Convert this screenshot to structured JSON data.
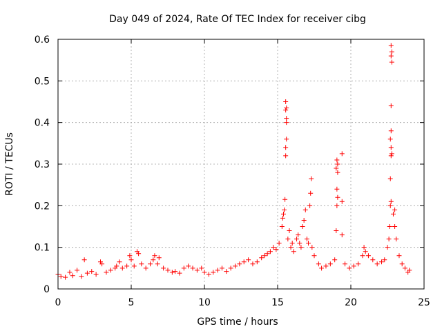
{
  "chart_data": {
    "type": "scatter",
    "title": "Day 049 of 2024, Rate Of TEC Index for receiver cibg",
    "xlabel": "GPS time / hours",
    "ylabel": "ROTI / TECUs",
    "xlim": [
      0,
      25
    ],
    "ylim": [
      0,
      0.6
    ],
    "xticks": [
      0,
      5,
      10,
      15,
      20,
      25
    ],
    "xtick_labels": [
      "0",
      "5",
      "10",
      "15",
      "20",
      "25"
    ],
    "yticks": [
      0,
      0.1,
      0.2,
      0.3,
      0.4,
      0.5,
      0.6
    ],
    "ytick_labels": [
      "0",
      "0.1",
      "0.2",
      "0.3",
      "0.4",
      "0.5",
      "0.6"
    ],
    "grid": true,
    "marker": "+",
    "marker_color": "#ff0000",
    "series": [
      {
        "name": "ROTI",
        "points": [
          [
            0.0,
            0.035
          ],
          [
            0.2,
            0.03
          ],
          [
            0.5,
            0.028
          ],
          [
            0.8,
            0.04
          ],
          [
            1.0,
            0.032
          ],
          [
            1.3,
            0.045
          ],
          [
            1.6,
            0.03
          ],
          [
            1.8,
            0.07
          ],
          [
            2.0,
            0.038
          ],
          [
            2.3,
            0.042
          ],
          [
            2.6,
            0.035
          ],
          [
            2.9,
            0.065
          ],
          [
            3.0,
            0.06
          ],
          [
            3.3,
            0.04
          ],
          [
            3.6,
            0.045
          ],
          [
            3.9,
            0.05
          ],
          [
            4.0,
            0.055
          ],
          [
            4.2,
            0.065
          ],
          [
            4.4,
            0.05
          ],
          [
            4.7,
            0.055
          ],
          [
            4.9,
            0.08
          ],
          [
            5.0,
            0.07
          ],
          [
            5.2,
            0.055
          ],
          [
            5.4,
            0.09
          ],
          [
            5.5,
            0.085
          ],
          [
            5.7,
            0.06
          ],
          [
            6.0,
            0.05
          ],
          [
            6.3,
            0.06
          ],
          [
            6.5,
            0.07
          ],
          [
            6.6,
            0.08
          ],
          [
            6.8,
            0.06
          ],
          [
            6.9,
            0.075
          ],
          [
            7.2,
            0.05
          ],
          [
            7.5,
            0.045
          ],
          [
            7.8,
            0.04
          ],
          [
            8.0,
            0.042
          ],
          [
            8.3,
            0.038
          ],
          [
            8.6,
            0.05
          ],
          [
            8.9,
            0.055
          ],
          [
            9.2,
            0.05
          ],
          [
            9.5,
            0.045
          ],
          [
            9.8,
            0.05
          ],
          [
            10.0,
            0.04
          ],
          [
            10.3,
            0.035
          ],
          [
            10.6,
            0.04
          ],
          [
            10.9,
            0.045
          ],
          [
            11.2,
            0.05
          ],
          [
            11.5,
            0.042
          ],
          [
            11.8,
            0.05
          ],
          [
            12.1,
            0.055
          ],
          [
            12.4,
            0.06
          ],
          [
            12.7,
            0.065
          ],
          [
            13.0,
            0.07
          ],
          [
            13.3,
            0.06
          ],
          [
            13.6,
            0.065
          ],
          [
            13.9,
            0.075
          ],
          [
            14.1,
            0.08
          ],
          [
            14.3,
            0.085
          ],
          [
            14.5,
            0.09
          ],
          [
            14.7,
            0.1
          ],
          [
            14.9,
            0.095
          ],
          [
            15.1,
            0.11
          ],
          [
            15.3,
            0.15
          ],
          [
            15.35,
            0.17
          ],
          [
            15.4,
            0.18
          ],
          [
            15.45,
            0.19
          ],
          [
            15.5,
            0.215
          ],
          [
            15.55,
            0.32
          ],
          [
            15.55,
            0.34
          ],
          [
            15.6,
            0.36
          ],
          [
            15.6,
            0.4
          ],
          [
            15.6,
            0.41
          ],
          [
            15.55,
            0.43
          ],
          [
            15.6,
            0.435
          ],
          [
            15.55,
            0.45
          ],
          [
            15.7,
            0.12
          ],
          [
            15.8,
            0.14
          ],
          [
            15.9,
            0.1
          ],
          [
            16.0,
            0.11
          ],
          [
            16.1,
            0.09
          ],
          [
            16.3,
            0.12
          ],
          [
            16.4,
            0.13
          ],
          [
            16.5,
            0.11
          ],
          [
            16.6,
            0.1
          ],
          [
            16.7,
            0.15
          ],
          [
            16.8,
            0.165
          ],
          [
            16.9,
            0.19
          ],
          [
            17.0,
            0.12
          ],
          [
            17.1,
            0.11
          ],
          [
            17.2,
            0.2
          ],
          [
            17.25,
            0.23
          ],
          [
            17.3,
            0.265
          ],
          [
            17.35,
            0.1
          ],
          [
            17.5,
            0.08
          ],
          [
            17.8,
            0.06
          ],
          [
            18.0,
            0.05
          ],
          [
            18.3,
            0.055
          ],
          [
            18.6,
            0.06
          ],
          [
            18.9,
            0.07
          ],
          [
            19.0,
            0.14
          ],
          [
            19.05,
            0.2
          ],
          [
            19.1,
            0.22
          ],
          [
            19.05,
            0.24
          ],
          [
            19.1,
            0.28
          ],
          [
            19.0,
            0.29
          ],
          [
            19.1,
            0.3
          ],
          [
            19.05,
            0.31
          ],
          [
            19.4,
            0.21
          ],
          [
            19.4,
            0.325
          ],
          [
            19.4,
            0.13
          ],
          [
            19.6,
            0.06
          ],
          [
            19.9,
            0.05
          ],
          [
            20.2,
            0.055
          ],
          [
            20.5,
            0.06
          ],
          [
            20.8,
            0.08
          ],
          [
            20.9,
            0.1
          ],
          [
            21.0,
            0.09
          ],
          [
            21.2,
            0.08
          ],
          [
            21.5,
            0.07
          ],
          [
            21.8,
            0.06
          ],
          [
            22.1,
            0.065
          ],
          [
            22.3,
            0.07
          ],
          [
            22.5,
            0.1
          ],
          [
            22.6,
            0.12
          ],
          [
            22.65,
            0.15
          ],
          [
            22.7,
            0.2
          ],
          [
            22.75,
            0.21
          ],
          [
            22.7,
            0.265
          ],
          [
            22.75,
            0.32
          ],
          [
            22.8,
            0.325
          ],
          [
            22.75,
            0.34
          ],
          [
            22.7,
            0.36
          ],
          [
            22.75,
            0.38
          ],
          [
            22.75,
            0.44
          ],
          [
            22.8,
            0.545
          ],
          [
            22.75,
            0.56
          ],
          [
            22.8,
            0.57
          ],
          [
            22.75,
            0.585
          ],
          [
            22.9,
            0.18
          ],
          [
            23.0,
            0.15
          ],
          [
            23.0,
            0.19
          ],
          [
            23.1,
            0.12
          ],
          [
            23.3,
            0.08
          ],
          [
            23.5,
            0.06
          ],
          [
            23.7,
            0.05
          ],
          [
            23.9,
            0.04
          ],
          [
            24.0,
            0.045
          ]
        ]
      }
    ]
  }
}
